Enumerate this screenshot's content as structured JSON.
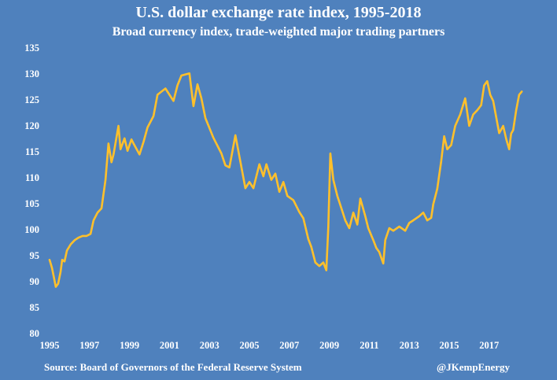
{
  "chart_data": {
    "type": "line",
    "title": "U.S. dollar exchange rate index, 1995-2018",
    "subtitle": "Broad currency index, trade-weighted major trading partners",
    "xlabel": "",
    "ylabel": "",
    "xlim": [
      1995,
      2018.6
    ],
    "ylim": [
      80,
      135
    ],
    "grid": false,
    "x_ticks": [
      "1995",
      "1997",
      "1999",
      "2001",
      "2003",
      "2005",
      "2007",
      "2009",
      "2011",
      "2013",
      "2015",
      "2017"
    ],
    "y_ticks": [
      "80",
      "85",
      "90",
      "95",
      "100",
      "105",
      "110",
      "115",
      "120",
      "125",
      "130",
      "135"
    ],
    "series": [
      {
        "name": "Broad currency index",
        "color": "#FFC02B",
        "x": [
          1995.0,
          1995.12,
          1995.24,
          1995.31,
          1995.43,
          1995.55,
          1995.63,
          1995.75,
          1995.87,
          1996.06,
          1996.26,
          1996.46,
          1996.65,
          1996.85,
          1997.05,
          1997.2,
          1997.4,
          1997.6,
          1997.8,
          1997.95,
          1998.1,
          1998.2,
          1998.45,
          1998.55,
          1998.75,
          1998.9,
          1999.1,
          1999.2,
          1999.5,
          1999.7,
          1999.9,
          2000.2,
          2000.4,
          2000.8,
          2001.2,
          2001.4,
          2001.6,
          2002.0,
          2002.2,
          2002.4,
          2002.6,
          2002.8,
          2003.2,
          2003.6,
          2003.8,
          2004.0,
          2004.3,
          2004.5,
          2004.8,
          2005.0,
          2005.2,
          2005.5,
          2005.7,
          2005.85,
          2006.1,
          2006.3,
          2006.5,
          2006.7,
          2006.9,
          2007.2,
          2007.5,
          2007.7,
          2007.95,
          2008.1,
          2008.3,
          2008.5,
          2008.7,
          2008.85,
          2008.95,
          2009.05,
          2009.2,
          2009.4,
          2009.6,
          2009.8,
          2010.0,
          2010.2,
          2010.4,
          2010.55,
          2010.8,
          2010.95,
          2011.2,
          2011.35,
          2011.5,
          2011.7,
          2011.8,
          2012.0,
          2012.2,
          2012.5,
          2012.8,
          2013.0,
          2013.2,
          2013.5,
          2013.7,
          2013.9,
          2014.1,
          2014.2,
          2014.4,
          2014.6,
          2014.75,
          2014.9,
          2015.1,
          2015.3,
          2015.55,
          2015.8,
          2016.0,
          2016.2,
          2016.4,
          2016.6,
          2016.75,
          2016.9,
          2017.05,
          2017.2,
          2017.5,
          2017.7,
          2017.85,
          2018.0,
          2018.1,
          2018.2,
          2018.35,
          2018.5,
          2018.63
        ],
        "values": [
          94.2,
          92.7,
          90.4,
          89.0,
          89.6,
          91.9,
          94.2,
          93.9,
          96.0,
          97.2,
          98.0,
          98.5,
          98.8,
          98.8,
          99.2,
          101.8,
          103.3,
          104.1,
          109.6,
          116.6,
          113.0,
          114.5,
          120.0,
          115.5,
          117.6,
          115.2,
          117.4,
          116.6,
          114.5,
          116.9,
          119.7,
          121.9,
          126.0,
          127.2,
          124.8,
          127.8,
          129.7,
          130.1,
          123.8,
          128.0,
          125.3,
          121.5,
          117.7,
          114.7,
          112.4,
          112.0,
          118.2,
          114.1,
          108.0,
          109.2,
          108.0,
          112.6,
          110.3,
          112.6,
          109.6,
          110.8,
          107.3,
          109.2,
          106.5,
          105.7,
          103.4,
          102.2,
          98.2,
          96.7,
          93.7,
          93.0,
          93.7,
          92.2,
          100.5,
          114.7,
          109.6,
          106.5,
          104.2,
          101.8,
          100.3,
          103.3,
          101.0,
          106.0,
          102.6,
          100.3,
          98.0,
          96.5,
          95.7,
          93.5,
          98.0,
          100.3,
          99.8,
          100.6,
          99.8,
          101.3,
          101.8,
          102.6,
          103.3,
          101.8,
          102.3,
          104.9,
          107.9,
          113.2,
          118.0,
          115.5,
          116.3,
          120.0,
          122.2,
          125.3,
          120.0,
          122.2,
          123.0,
          124.0,
          127.8,
          128.6,
          126.0,
          124.8,
          118.6,
          120.0,
          117.5,
          115.5,
          118.5,
          119.2,
          123.0,
          126.0,
          126.6
        ]
      }
    ]
  },
  "footer": {
    "source": "Source: Board of Governors of the Federal Reserve System",
    "handle": "@JKempEnergy"
  }
}
